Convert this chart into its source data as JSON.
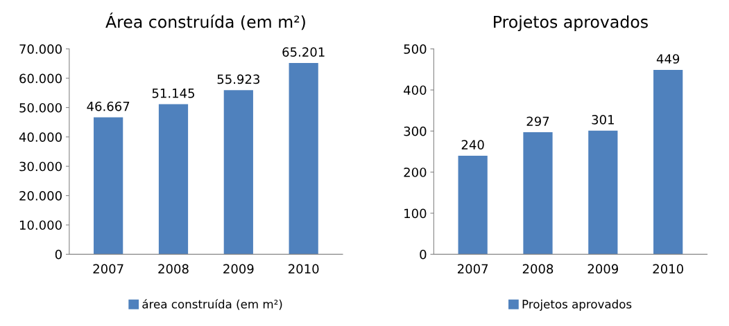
{
  "chart_data": [
    {
      "type": "bar",
      "title": "Área construída (em m²)",
      "categories": [
        "2007",
        "2008",
        "2009",
        "2010"
      ],
      "series": [
        {
          "name": "área construída (em m²)",
          "color": "#4f81bd",
          "values": [
            46667,
            51145,
            55923,
            65201
          ],
          "value_labels": [
            "46.667",
            "51.145",
            "55.923",
            "65.201"
          ]
        }
      ],
      "ylim": [
        0,
        70000
      ],
      "yticks": [
        0,
        {
          "value": 10000,
          "label": "10.000"
        },
        {
          "value": 20000,
          "label": "20.000"
        },
        {
          "value": 30000,
          "label": "30.000"
        },
        {
          "value": 40000,
          "label": "40.000"
        },
        {
          "value": 50000,
          "label": "50.000"
        },
        {
          "value": 60000,
          "label": "60.000"
        },
        {
          "value": 70000,
          "label": "70.000"
        }
      ],
      "grid": false,
      "legend": "bottom"
    },
    {
      "type": "bar",
      "title": "Projetos aprovados",
      "categories": [
        "2007",
        "2008",
        "2009",
        "2010"
      ],
      "series": [
        {
          "name": "Projetos aprovados",
          "color": "#4f81bd",
          "values": [
            240,
            297,
            301,
            449
          ]
        }
      ],
      "ylim": [
        0,
        500
      ],
      "yticks": [
        0,
        100,
        200,
        300,
        400,
        500
      ],
      "grid": false,
      "legend": "bottom",
      "data_labels": true
    }
  ]
}
